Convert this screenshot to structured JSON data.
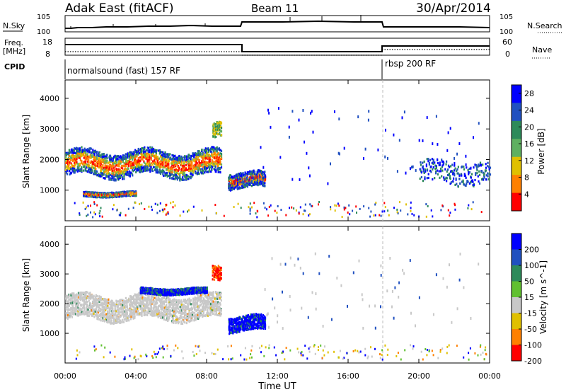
{
  "header": {
    "title": "Adak East (fitACF)",
    "beam": "Beam 11",
    "date": "30/Apr/2014"
  },
  "top_panels": {
    "nsky_label": "N.Sky",
    "nsearch_label": "N.Search",
    "freq_label": "Freq.",
    "freq_unit": "[MHz]",
    "nave_label": "Nave",
    "cpid_label": "CPID",
    "cpid_segments": [
      "normalsound (fast) 157 RF",
      "rbsp 200 RF"
    ],
    "noise_ticks_left": [
      "10^5",
      "10^0"
    ],
    "noise_ticks_right": [
      "10^5",
      "10^0"
    ],
    "freq_ticks_left": [
      "18",
      "8"
    ],
    "nave_ticks_right": [
      "60",
      "0"
    ]
  },
  "chart_data": [
    {
      "type": "heatmap",
      "title": "",
      "xlabel": "Time UT",
      "ylabel": "Slant Range [km]",
      "x_ticks": [
        "00:00",
        "04:00",
        "08:00",
        "12:00",
        "16:00",
        "20:00",
        "00:00"
      ],
      "x_range_hours": [
        0,
        24
      ],
      "y_ticks": [
        1000,
        2000,
        3000,
        4000
      ],
      "ylim": [
        0,
        4600
      ],
      "colorbar": {
        "label": "Power [dB]",
        "ticks": [
          4,
          8,
          12,
          16,
          20,
          24,
          28
        ],
        "colors": [
          "#0000ff",
          "#2050c0",
          "#2d8a5a",
          "#5fb060",
          "#e0c000",
          "#ff8000",
          "#ff0000"
        ]
      },
      "features": [
        {
          "name": "main band",
          "start_h": 0.0,
          "end_h": 8.8,
          "center_km": 1900,
          "width_km": 800
        },
        {
          "name": "lower band",
          "start_h": 1.0,
          "end_h": 4.0,
          "center_km": 900,
          "width_km": 150
        },
        {
          "name": "night patch",
          "start_h": 9.2,
          "end_h": 11.3,
          "center_km": 1350,
          "width_km": 500
        },
        {
          "name": "plume",
          "start_h": 8.3,
          "end_h": 8.8,
          "center_km": 3100,
          "width_km": 500
        },
        {
          "name": "late echoes",
          "start_h": 20.0,
          "end_h": 24.0,
          "center_km": 1600,
          "width_km": 700
        }
      ]
    },
    {
      "type": "heatmap",
      "title": "",
      "xlabel": "Time UT",
      "ylabel": "Slant Range [km]",
      "x_ticks": [
        "00:00",
        "04:00",
        "08:00",
        "12:00",
        "16:00",
        "20:00",
        "00:00"
      ],
      "x_range_hours": [
        0,
        24
      ],
      "y_ticks": [
        1000,
        2000,
        3000,
        4000
      ],
      "ylim": [
        0,
        4600
      ],
      "colorbar": {
        "label": "Velocity [m s^-1]",
        "ticks": [
          200,
          100,
          50,
          15,
          -15,
          -50,
          -100,
          -200
        ],
        "colors": [
          "#0000ff",
          "#2050c0",
          "#2d8a5a",
          "#60c030",
          "#c8c8c8",
          "#e0c000",
          "#ff8000",
          "#ff0000"
        ]
      },
      "features": [
        {
          "name": "ground scatter band",
          "start_h": 0.0,
          "end_h": 8.8,
          "center_km": 1900,
          "width_km": 800
        },
        {
          "name": "blue edge",
          "start_h": 4.2,
          "end_h": 8.0,
          "center_km": 2450,
          "width_km": 200
        },
        {
          "name": "night patch",
          "start_h": 9.2,
          "end_h": 11.3,
          "center_km": 1350,
          "width_km": 500
        },
        {
          "name": "plume",
          "start_h": 8.3,
          "end_h": 8.8,
          "center_km": 3150,
          "width_km": 500
        }
      ]
    }
  ]
}
